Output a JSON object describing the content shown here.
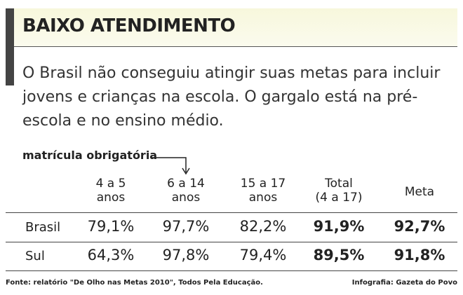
{
  "header": {
    "title": "BAIXO ATENDIMENTO",
    "intro": "O Brasil não conseguiu atingir suas metas para incluir jovens e crianças na escola. O gargalo está na pré-escola e no ensino médio."
  },
  "table": {
    "label": "matrícula obrigatória",
    "columns": [
      [
        "4 a 5",
        "anos"
      ],
      [
        "6 a 14",
        "anos"
      ],
      [
        "15 a 17",
        "anos"
      ],
      [
        "Total",
        "(4 a 17)"
      ],
      [
        "Meta"
      ]
    ],
    "rows": [
      [
        "Brasil",
        "79,1%",
        "97,7%",
        "82,2%",
        "91,9%",
        "92,7%"
      ],
      [
        "Sul",
        "64,3%",
        "97,8%",
        "79,4%",
        "89,5%",
        "91,8%"
      ]
    ]
  },
  "footer": {
    "source": "Fonte: relatório \"De Olho nas Metas 2010\", Todos Pela Educação.",
    "credit": "Infografia: Gazeta do Povo"
  }
}
